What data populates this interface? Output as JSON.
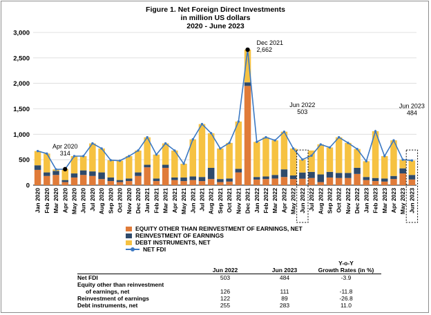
{
  "title": {
    "line1": "Figure 1. Net Foreign Direct Investments",
    "line2": "in million US dollars",
    "line3": "2020 - June 2023"
  },
  "colors": {
    "equity": "#e07b39",
    "reinvestment": "#2e4a6b",
    "debt": "#f6c242",
    "net_fdi": "#3b78c2",
    "apr_marker": "#000000"
  },
  "chart_data": {
    "type": "bar",
    "stacked": true,
    "ylim": [
      0,
      3000
    ],
    "yticks": [
      "0",
      "500",
      "1,000",
      "1,500",
      "2,000",
      "2,500",
      "3,000"
    ],
    "grid": true,
    "categories": [
      "Jan 2020",
      "Feb 2020",
      "Mar 2020",
      "Apr 2020",
      "May 2020",
      "Jun 2020",
      "Jul 2020",
      "Aug 2020",
      "Sep 2020",
      "Oct 2020",
      "Nov 2020",
      "Dec 2020",
      "Jan 2021",
      "Feb 2021",
      "Mar 2021",
      "Apr 2021",
      "May 2021",
      "Jun 2021",
      "Jul 2021",
      "Aug 2021",
      "Sep 2021",
      "Oct 2021",
      "Nov 2021",
      "Dec 2021",
      "Jan 2022",
      "Feb 2022",
      "Mar 2022",
      "Apr 2022",
      "May 2022",
      "Jun 2022",
      "Jul 2022",
      "Aug 2022",
      "Sep 2022",
      "Oct 2022",
      "Nov 2022",
      "Dec 2022",
      "Jan 2023",
      "Feb 2023",
      "Mar 2023",
      "Apr 2023",
      "May 2023",
      "Jun 2023"
    ],
    "series": [
      {
        "name": "EQUITY OTHER THAN REINVESTMENT OF EARNINGS, NET",
        "color_key": "equity",
        "values": [
          300,
          180,
          200,
          60,
          150,
          200,
          180,
          120,
          80,
          60,
          80,
          180,
          350,
          80,
          340,
          100,
          80,
          100,
          80,
          120,
          60,
          70,
          250,
          1950,
          110,
          120,
          130,
          160,
          120,
          126,
          140,
          60,
          150,
          140,
          140,
          220,
          100,
          80,
          70,
          120,
          230,
          111
        ]
      },
      {
        "name": "REINVESTMENT OF EARNINGS",
        "color_key": "reinvestment",
        "values": [
          90,
          70,
          80,
          40,
          80,
          90,
          90,
          130,
          70,
          40,
          50,
          70,
          50,
          50,
          60,
          50,
          70,
          70,
          80,
          220,
          60,
          60,
          70,
          70,
          50,
          50,
          70,
          150,
          70,
          122,
          120,
          150,
          110,
          100,
          100,
          120,
          60,
          60,
          60,
          60,
          100,
          89
        ]
      },
      {
        "name": "DEBT INSTRUMENTS, NET",
        "color_key": "debt",
        "values": [
          280,
          370,
          30,
          214,
          340,
          280,
          550,
          470,
          340,
          380,
          440,
          430,
          540,
          470,
          420,
          530,
          270,
          730,
          1040,
          680,
          600,
          700,
          930,
          642,
          690,
          770,
          680,
          740,
          530,
          255,
          420,
          590,
          480,
          700,
          590,
          370,
          310,
          920,
          440,
          700,
          170,
          283
        ]
      },
      {
        "name": "NET FDI",
        "color_key": "net_fdi",
        "type": "line",
        "values": [
          670,
          620,
          310,
          314,
          570,
          570,
          820,
          720,
          490,
          480,
          570,
          680,
          940,
          600,
          820,
          680,
          420,
          900,
          1200,
          1020,
          720,
          830,
          1250,
          2662,
          850,
          940,
          880,
          1050,
          720,
          503,
          580,
          800,
          740,
          940,
          830,
          710,
          470,
          1060,
          570,
          880,
          500,
          484
        ]
      }
    ],
    "annotations": [
      {
        "label": "Apr 2020",
        "value": "314",
        "category": "Apr 2020"
      },
      {
        "label": "Dec 2021",
        "value": "2,662",
        "category": "Dec 2021"
      },
      {
        "label": "Jun 2022",
        "value": "503",
        "category": "Jun 2022"
      },
      {
        "label": "Jun 2023",
        "value": "484",
        "category": "Jun 2023"
      }
    ],
    "highlighted_categories": [
      "Jun 2022",
      "Jun 2023"
    ]
  },
  "legend": [
    {
      "label": "EQUITY OTHER THAN REINVESTMENT OF EARNINGS, NET",
      "color_key": "equity",
      "kind": "bar"
    },
    {
      "label": "REINVESTMENT OF EARNINGS",
      "color_key": "reinvestment",
      "kind": "bar"
    },
    {
      "label": "DEBT INSTRUMENTS, NET",
      "color_key": "debt",
      "kind": "bar"
    },
    {
      "label": "NET FDI",
      "color_key": "net_fdi",
      "kind": "line"
    }
  ],
  "table": {
    "headers": [
      "Jun 2022",
      "Jun 2023",
      "Y-o-Y",
      "Growth Rates (in %)"
    ],
    "rows": [
      {
        "label": "Net FDI",
        "v1": "503",
        "v2": "484",
        "v3": "-3.9"
      },
      {
        "label": "Equity other than reinvestment",
        "label2": "of earnings, net",
        "v1": "126",
        "v2": "111",
        "v3": "-11.8"
      },
      {
        "label": "Reinvestment of earnings",
        "v1": "122",
        "v2": "89",
        "v3": "-26.8"
      },
      {
        "label": "Debt instruments, net",
        "v1": "255",
        "v2": "283",
        "v3": "11.0"
      }
    ]
  }
}
